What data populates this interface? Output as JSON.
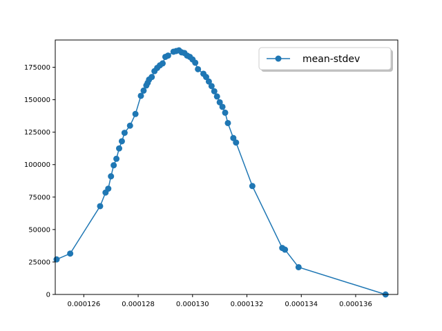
{
  "chart_data": {
    "type": "line",
    "title": "",
    "xlabel": "",
    "ylabel": "",
    "xlim": [
      0.00012495,
      0.00013755
    ],
    "ylim": [
      0,
      196000
    ],
    "x_ticks": [
      0.000126,
      0.000128,
      0.00013,
      0.000132,
      0.000134,
      0.000136
    ],
    "x_tick_labels": [
      "0.000126",
      "0.000128",
      "0.000130",
      "0.000132",
      "0.000134",
      "0.000136"
    ],
    "y_ticks": [
      0,
      25000,
      50000,
      75000,
      100000,
      125000,
      150000,
      175000
    ],
    "y_tick_labels": [
      "0",
      "25000",
      "50000",
      "75000",
      "100000",
      "125000",
      "150000",
      "175000"
    ],
    "grid": false,
    "legend_position": "top-right",
    "series": [
      {
        "name": "mean-stdev",
        "color": "#1f77b4",
        "marker": "circle",
        "x": [
          0.000125,
          0.0001255,
          0.0001266,
          0.0001268,
          0.0001269,
          0.000127,
          0.0001271,
          0.0001272,
          0.0001273,
          0.0001274,
          0.0001275,
          0.0001277,
          0.0001279,
          0.0001281,
          0.0001282,
          0.0001283,
          0.00012835,
          0.0001284,
          0.0001285,
          0.0001286,
          0.0001287,
          0.0001288,
          0.0001289,
          0.000129,
          0.0001291,
          0.0001293,
          0.0001294,
          0.0001295,
          0.0001296,
          0.0001297,
          0.0001298,
          0.0001299,
          0.00013,
          0.0001301,
          0.0001302,
          0.0001304,
          0.0001305,
          0.0001306,
          0.0001307,
          0.0001308,
          0.0001309,
          0.000131,
          0.0001311,
          0.0001312,
          0.0001313,
          0.0001315,
          0.0001316,
          0.0001322,
          0.0001333,
          0.0001334,
          0.0001339,
          0.0001371
        ],
        "values": [
          27000,
          31500,
          68000,
          78500,
          81500,
          91000,
          99500,
          104500,
          112500,
          118000,
          124500,
          130000,
          139000,
          153000,
          157000,
          161000,
          163000,
          165500,
          167500,
          172000,
          174500,
          176500,
          178000,
          183000,
          184000,
          187000,
          187500,
          188000,
          186500,
          186000,
          184000,
          183000,
          181000,
          178500,
          173500,
          170000,
          167500,
          164000,
          160500,
          156500,
          152500,
          148000,
          144500,
          140000,
          132000,
          120500,
          117000,
          83500,
          35800,
          34500,
          21000,
          0
        ]
      }
    ]
  }
}
